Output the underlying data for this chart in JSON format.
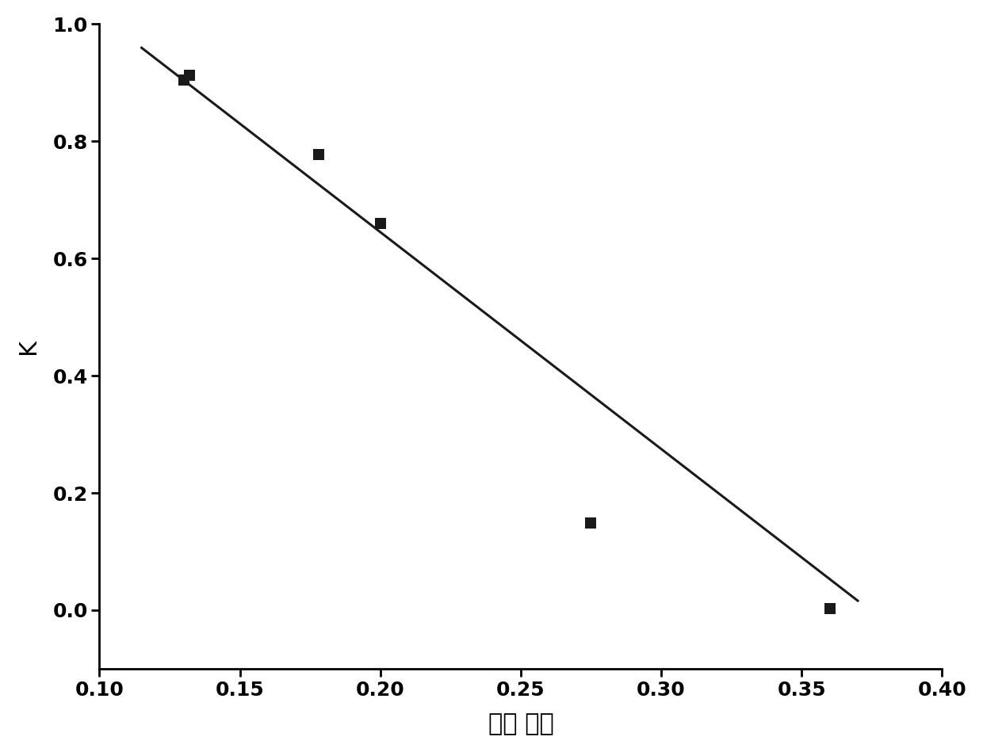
{
  "scatter_x": [
    0.13,
    0.132,
    0.178,
    0.2,
    0.275,
    0.36
  ],
  "scatter_y": [
    0.905,
    0.912,
    0.778,
    0.66,
    0.148,
    0.002
  ],
  "line_x_start": 0.115,
  "line_x_end": 0.37,
  "line_slope": -3.7,
  "line_intercept": 1.385,
  "xlim": [
    0.1,
    0.4
  ],
  "ylim": [
    -0.1,
    1.0
  ],
  "xticks": [
    0.1,
    0.15,
    0.2,
    0.25,
    0.3,
    0.35,
    0.4
  ],
  "yticks": [
    0.0,
    0.2,
    0.4,
    0.6,
    0.8,
    1.0
  ],
  "xlabel": "蛋黄 指数",
  "ylabel": "K",
  "marker_color": "#1a1a1a",
  "line_color": "#1a1a1a",
  "background_color": "#ffffff",
  "marker_size": 90,
  "line_width": 2.2,
  "xlabel_fontsize": 22,
  "ylabel_fontsize": 22,
  "tick_fontsize": 18,
  "spine_linewidth": 2.0
}
